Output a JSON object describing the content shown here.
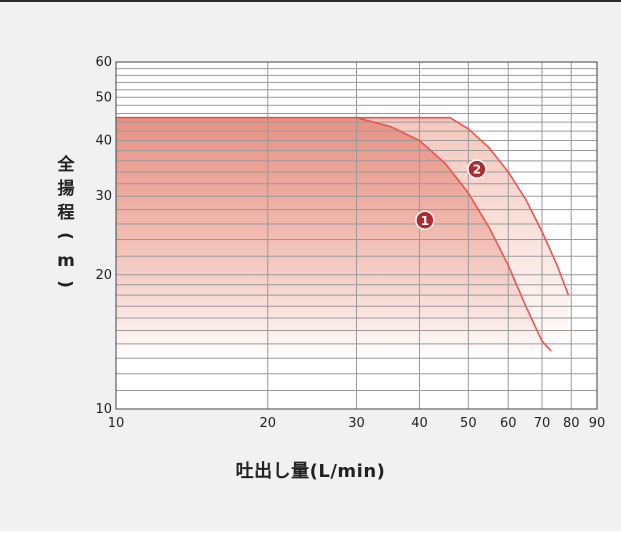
{
  "chart_data": {
    "type": "line",
    "xlabel": "吐出し量(L/min)",
    "ylabel": "全揚程(m)",
    "x_scale": "log",
    "y_scale": "log",
    "xlim": [
      10,
      90
    ],
    "ylim": [
      10,
      60
    ],
    "x_tick_labels": [
      "10",
      "20",
      "30",
      "40",
      "50",
      "60",
      "70",
      "80",
      "90"
    ],
    "y_tick_labels": [
      "10",
      "20",
      "30",
      "40",
      "50",
      "60"
    ],
    "grid": true,
    "series": [
      {
        "name": "1",
        "color": "#e8564f",
        "x": [
          10,
          30,
          35,
          40,
          45,
          50,
          55,
          60,
          65,
          70,
          73
        ],
        "y": [
          45,
          45,
          43,
          40,
          35.5,
          30.5,
          25.5,
          21,
          17,
          14.2,
          13.5
        ]
      },
      {
        "name": "2",
        "color": "#e8564f",
        "x": [
          10,
          46,
          50,
          55,
          60,
          65,
          70,
          75,
          79
        ],
        "y": [
          45,
          45,
          42.5,
          38.5,
          34,
          29.5,
          25,
          21,
          18
        ]
      }
    ],
    "markers": [
      {
        "label": "1",
        "x": 41,
        "y": 26.5,
        "color": "#b02a31"
      },
      {
        "label": "2",
        "x": 52,
        "y": 34.5,
        "color": "#b02a31"
      }
    ]
  }
}
